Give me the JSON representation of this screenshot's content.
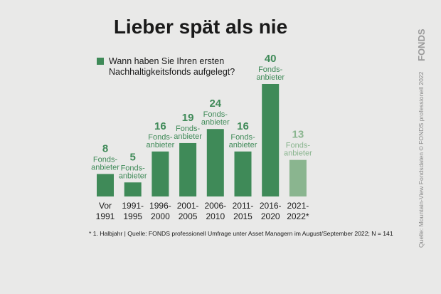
{
  "chart_data": {
    "type": "bar",
    "title": "Lieber spät als nie",
    "legend": "Wann haben Sie Ihren ersten Nachhaltigkeitsfonds aufgelegt?",
    "legend_lines": [
      "Wann haben Sie Ihren ersten",
      "Nachhaltigkeitsfonds aufgelegt?"
    ],
    "legend_position": "top-left",
    "categories": [
      [
        "Vor",
        "1991"
      ],
      [
        "1991-",
        "1995"
      ],
      [
        "1996-",
        "2000"
      ],
      [
        "2001-",
        "2005"
      ],
      [
        "2006-",
        "2010"
      ],
      [
        "2011-",
        "2015"
      ],
      [
        "2016-",
        "2020"
      ],
      [
        "2021-",
        "2022*"
      ]
    ],
    "values": [
      8,
      5,
      16,
      19,
      24,
      16,
      40,
      13
    ],
    "unit_label": [
      "Fonds-",
      "anbieter"
    ],
    "ylim": [
      0,
      40
    ],
    "grid": false,
    "colors": {
      "bar": "#3f8a58",
      "bar_highlight": "#8ab58f",
      "label": "#3f8a58",
      "label_highlight": "#8ab58f"
    },
    "highlight_index": 7,
    "footnote": "* 1. Halbjahr | Quelle: FONDS professionell Umfrage unter Asset Managern im August/September 2022; N = 141",
    "side_note": "Quelle: Mountain-View Fondsdaten   © FONDS professionell 2022",
    "logo": "FONDS"
  }
}
